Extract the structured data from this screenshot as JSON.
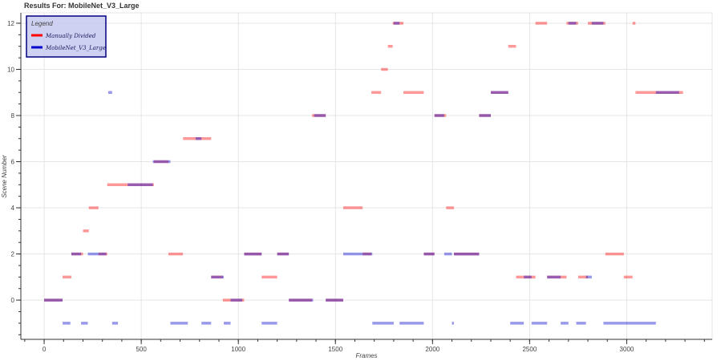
{
  "chart_data": {
    "type": "scatter",
    "title": "Results For: MobileNet_V3_Large",
    "xlabel": "Frames",
    "ylabel": "Scene Number",
    "xlim": [
      -120,
      3440
    ],
    "ylim": [
      -1.7,
      12.45
    ],
    "xticks": [
      0,
      500,
      1000,
      1500,
      2000,
      2500,
      3000
    ],
    "yticks": [
      0,
      2,
      4,
      6,
      8,
      10,
      12
    ],
    "grid": true,
    "legend": {
      "title": "Legend",
      "placement": "top-left",
      "entries": [
        "Manually Divided",
        "MobileNet_V3_Large"
      ]
    },
    "series": [
      {
        "name": "Manually Divided",
        "color": "#ff0000",
        "segments": [
          [
            0,
            95,
            0
          ],
          [
            95,
            140,
            1
          ],
          [
            140,
            200,
            2
          ],
          [
            200,
            230,
            3
          ],
          [
            230,
            280,
            4
          ],
          [
            280,
            325,
            2
          ],
          [
            325,
            565,
            5
          ],
          [
            565,
            640,
            6
          ],
          [
            640,
            715,
            2
          ],
          [
            715,
            860,
            7
          ],
          [
            860,
            920,
            1
          ],
          [
            920,
            1030,
            0
          ],
          [
            1030,
            1120,
            2
          ],
          [
            1120,
            1200,
            1
          ],
          [
            1200,
            1260,
            2
          ],
          [
            1260,
            1380,
            0
          ],
          [
            1380,
            1450,
            8
          ],
          [
            1450,
            1540,
            0
          ],
          [
            1540,
            1640,
            4
          ],
          [
            1640,
            1685,
            2
          ],
          [
            1685,
            1735,
            9
          ],
          [
            1735,
            1770,
            10
          ],
          [
            1770,
            1795,
            11
          ],
          [
            1795,
            1850,
            12
          ],
          [
            1850,
            1955,
            9
          ],
          [
            1955,
            2010,
            2
          ],
          [
            2010,
            2070,
            8
          ],
          [
            2070,
            2110,
            4
          ],
          [
            2110,
            2240,
            2
          ],
          [
            2240,
            2300,
            8
          ],
          [
            2300,
            2390,
            9
          ],
          [
            2390,
            2430,
            11
          ],
          [
            2430,
            2530,
            1
          ],
          [
            2530,
            2590,
            12
          ],
          [
            2590,
            2690,
            1
          ],
          [
            2690,
            2750,
            12
          ],
          [
            2750,
            2800,
            1
          ],
          [
            2800,
            2890,
            12
          ],
          [
            2890,
            2985,
            2
          ],
          [
            2985,
            3030,
            1
          ],
          [
            3030,
            3045,
            12
          ],
          [
            3045,
            3290,
            9
          ]
        ]
      },
      {
        "name": "MobileNet_V3_Large",
        "color": "#0000cc",
        "segments": [
          [
            0,
            95,
            0
          ],
          [
            95,
            135,
            -1
          ],
          [
            140,
            190,
            2
          ],
          [
            190,
            225,
            -1
          ],
          [
            225,
            290,
            2
          ],
          [
            290,
            320,
            2
          ],
          [
            330,
            350,
            9
          ],
          [
            350,
            380,
            -1
          ],
          [
            430,
            560,
            5
          ],
          [
            560,
            650,
            6
          ],
          [
            650,
            740,
            -1
          ],
          [
            780,
            810,
            7
          ],
          [
            810,
            860,
            -1
          ],
          [
            860,
            925,
            1
          ],
          [
            925,
            960,
            -1
          ],
          [
            960,
            1020,
            0
          ],
          [
            1030,
            1120,
            2
          ],
          [
            1120,
            1200,
            -1
          ],
          [
            1200,
            1260,
            2
          ],
          [
            1260,
            1385,
            0
          ],
          [
            1390,
            1450,
            8
          ],
          [
            1450,
            1540,
            0
          ],
          [
            1540,
            1590,
            2
          ],
          [
            1590,
            1640,
            2
          ],
          [
            1640,
            1690,
            2
          ],
          [
            1690,
            1800,
            -1
          ],
          [
            1800,
            1830,
            12
          ],
          [
            1830,
            1955,
            -1
          ],
          [
            1955,
            2010,
            2
          ],
          [
            2010,
            2060,
            8
          ],
          [
            2060,
            2100,
            2
          ],
          [
            2100,
            2110,
            -1
          ],
          [
            2110,
            2240,
            2
          ],
          [
            2240,
            2300,
            8
          ],
          [
            2300,
            2390,
            9
          ],
          [
            2400,
            2470,
            -1
          ],
          [
            2470,
            2510,
            1
          ],
          [
            2510,
            2590,
            -1
          ],
          [
            2590,
            2660,
            1
          ],
          [
            2660,
            2700,
            -1
          ],
          [
            2700,
            2740,
            12
          ],
          [
            2740,
            2790,
            -1
          ],
          [
            2790,
            2820,
            1
          ],
          [
            2820,
            2880,
            12
          ],
          [
            2880,
            3000,
            -1
          ],
          [
            3000,
            3150,
            -1
          ],
          [
            3150,
            3270,
            9
          ]
        ]
      }
    ]
  }
}
